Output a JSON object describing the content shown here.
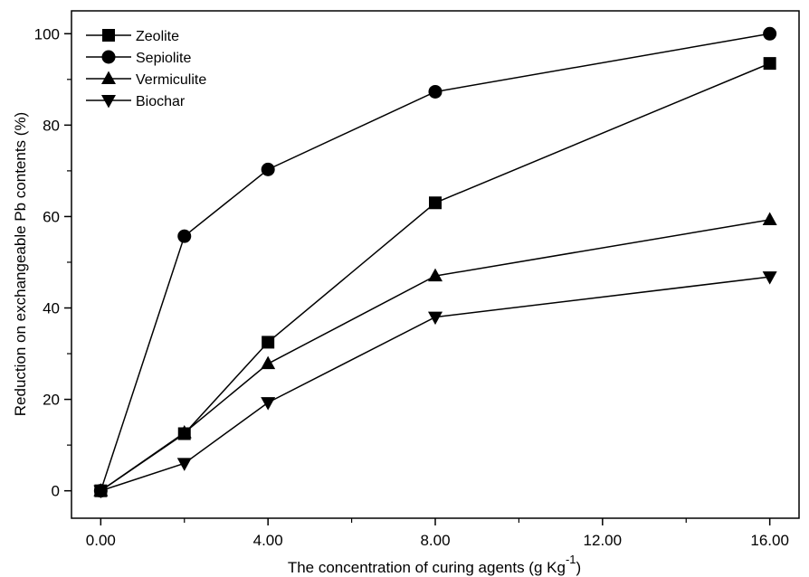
{
  "chart_data": {
    "type": "line",
    "title": "",
    "xlabel": "The concentration of curing agents (g Kg",
    "xlabel_superscript": "-1",
    "xlabel_suffix": ")",
    "ylabel": "Reduction on exchangeable Pb contents (%)",
    "x": [
      0,
      2,
      4,
      8,
      16
    ],
    "xlim": [
      -0.7,
      16.7
    ],
    "ylim": [
      -6,
      105
    ],
    "xticks": [
      0,
      4,
      8,
      12,
      16
    ],
    "xtick_labels": [
      "0.00",
      "4.00",
      "8.00",
      "12.00",
      "16.00"
    ],
    "yticks": [
      0,
      20,
      40,
      60,
      80,
      100
    ],
    "ytick_labels": [
      "0",
      "20",
      "40",
      "60",
      "80",
      "100"
    ],
    "grid": false,
    "legend_position": "top-left",
    "series": [
      {
        "name": "Zeolite",
        "marker": "square",
        "values": [
          0,
          12.5,
          32.5,
          63,
          93.5
        ]
      },
      {
        "name": "Sepiolite",
        "marker": "circle",
        "values": [
          0,
          55.7,
          70.3,
          87.3,
          100
        ]
      },
      {
        "name": "Vermiculite",
        "marker": "triangle-up",
        "values": [
          0,
          12.7,
          27.8,
          47,
          59.3
        ]
      },
      {
        "name": "Biochar",
        "marker": "triangle-down",
        "values": [
          0,
          6,
          19.3,
          38,
          46.8
        ]
      }
    ]
  }
}
